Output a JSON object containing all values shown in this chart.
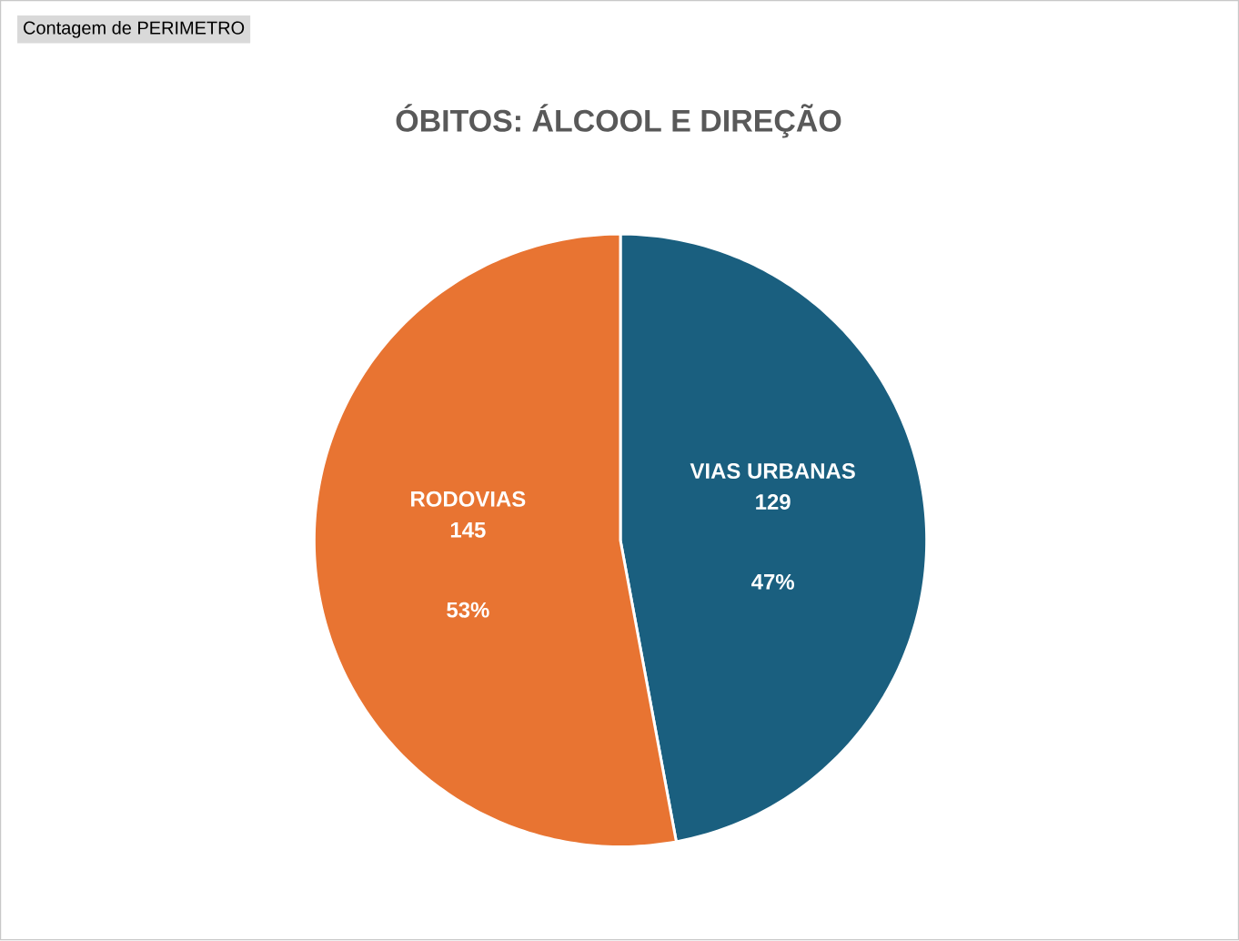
{
  "chart_data": {
    "type": "pie",
    "title": "ÓBITOS: ÁLCOOL E DIREÇÃO",
    "categories": [
      "VIAS URBANAS",
      "RODOVIAS"
    ],
    "values": [
      129,
      145
    ],
    "colors": [
      "#1a5f7f",
      "#e87432"
    ],
    "value_labels": [
      "129",
      "145"
    ],
    "annotations": [
      "Contagem de PERIMETRO",
      {
        "text": "47%",
        "x": "VIAS URBANAS"
      },
      {
        "text": "53%",
        "x": "RODOVIAS"
      }
    ]
  }
}
